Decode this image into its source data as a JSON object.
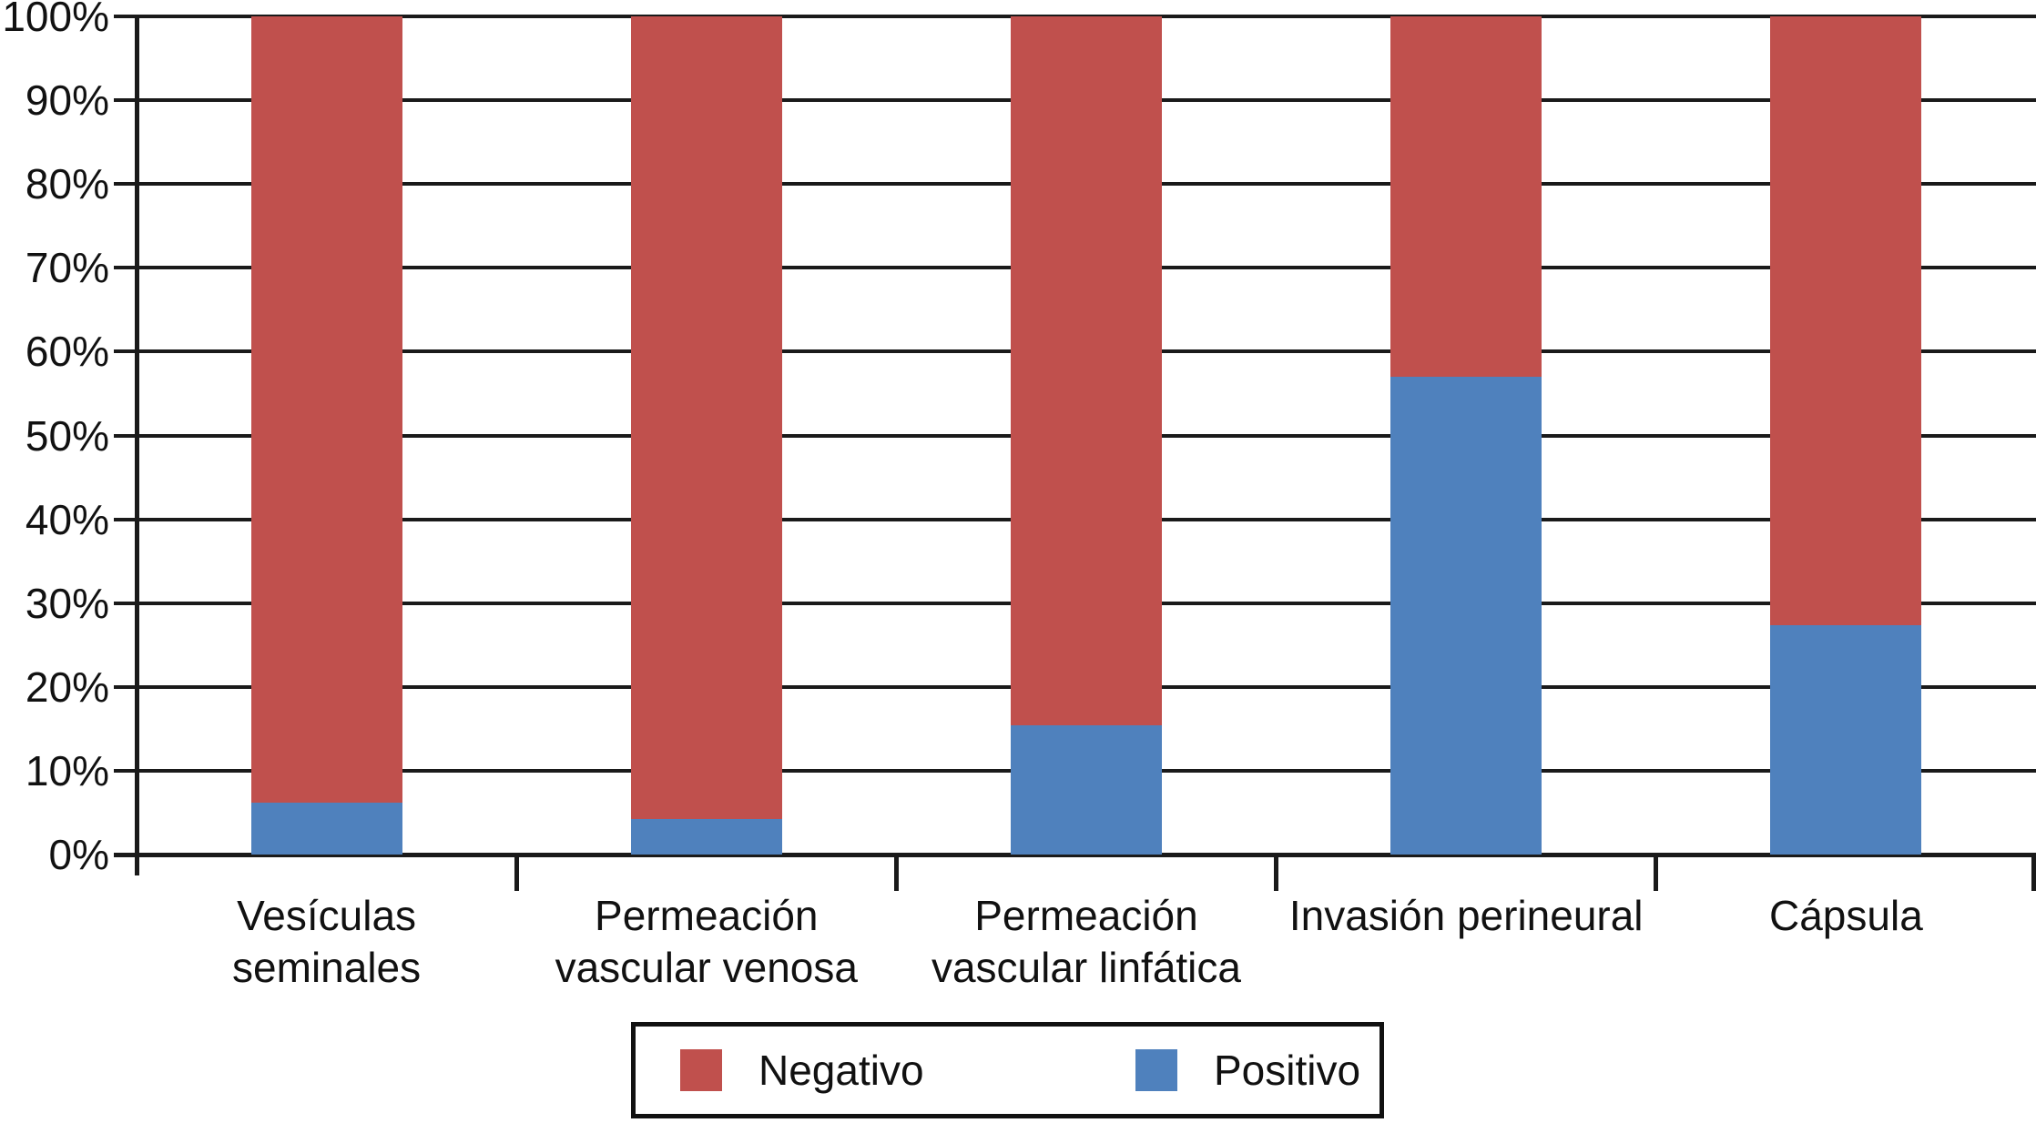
{
  "chart_data": {
    "type": "bar",
    "subtype": "stacked-100-percent",
    "title": "",
    "xlabel": "",
    "ylabel": "",
    "categories": [
      "Vesículas seminales",
      "Permeación vascular venosa",
      "Permeación vascular linfática",
      "Invasión perineural",
      "Cápsula"
    ],
    "category_label_lines": [
      [
        "Vesículas",
        "seminales"
      ],
      [
        "Permeación",
        "vascular venosa"
      ],
      [
        "Permeación",
        "vascular linfática"
      ],
      [
        "Invasión perineural"
      ],
      [
        "Cápsula"
      ]
    ],
    "series": [
      {
        "name": "Positivo",
        "color": "#4F81BD",
        "stack_position": "bottom",
        "values": [
          6.2,
          4.2,
          15.4,
          57.0,
          27.4
        ]
      },
      {
        "name": "Negativo",
        "color": "#C0504D",
        "stack_position": "top",
        "values": [
          93.8,
          95.8,
          84.6,
          43.0,
          72.6
        ]
      }
    ],
    "ylim": [
      0,
      100
    ],
    "ytick_step": 10,
    "ytick_labels": [
      "0%",
      "10%",
      "20%",
      "30%",
      "40%",
      "50%",
      "60%",
      "70%",
      "80%",
      "90%",
      "100%"
    ],
    "grid": true,
    "grid_color": "#1a1a1a",
    "axis_color": "#1a1a1a",
    "legend": {
      "position": "bottom",
      "border_color": "#111111",
      "entries": [
        {
          "label": "Negativo",
          "color": "#C0504D"
        },
        {
          "label": "Positivo",
          "color": "#4F81BD"
        }
      ]
    }
  }
}
